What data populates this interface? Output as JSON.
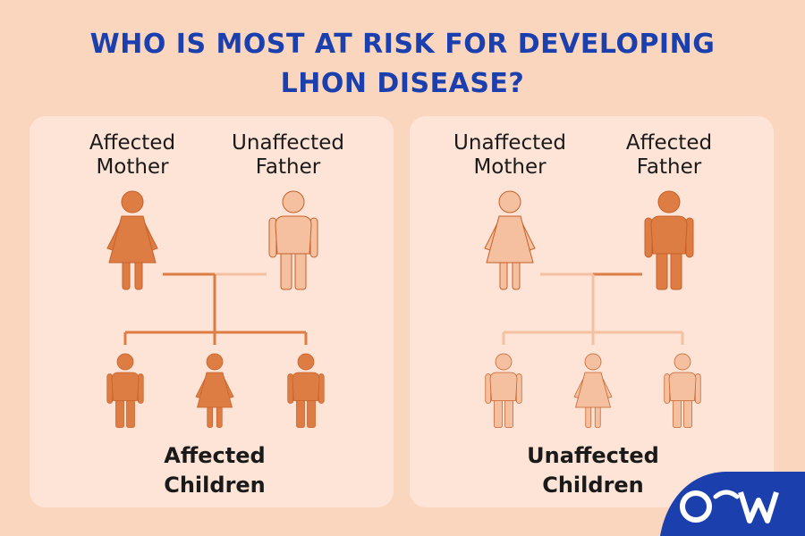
{
  "title": "WHO IS MOST AT RISK FOR DEVELOPING LHON DISEASE?",
  "colors": {
    "affected": "#dd7d44",
    "unaffected": "#f4c09f"
  },
  "panels": [
    {
      "parents": [
        {
          "label": "Affected Mother",
          "color": "#dd7d44",
          "sex": "female"
        },
        {
          "label": "Unaffected Father",
          "color": "#f4c09f",
          "sex": "male"
        }
      ],
      "children_label": "Affected Children",
      "children_color": "#dd7d44"
    },
    {
      "parents": [
        {
          "label": "Unaffected Mother",
          "color": "#f4c09f",
          "sex": "female"
        },
        {
          "label": "Affected Father",
          "color": "#dd7d44",
          "sex": "male"
        }
      ],
      "children_label": "Unaffected Children",
      "children_color": "#f4c09f"
    }
  ]
}
